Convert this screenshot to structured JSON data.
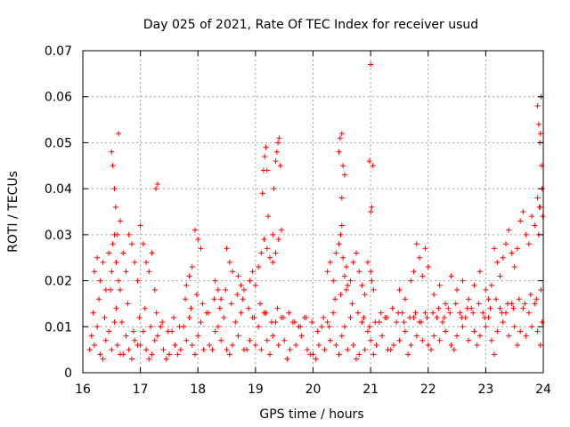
{
  "chart_data": {
    "type": "scatter",
    "title": "Day 025 of 2021, Rate Of TEC Index for receiver usud",
    "xlabel": "GPS time / hours",
    "ylabel": "ROTI / TECUs",
    "xlim": [
      16,
      24
    ],
    "ylim": [
      0,
      0.07
    ],
    "xticks": [
      16,
      17,
      18,
      19,
      20,
      21,
      22,
      23,
      24
    ],
    "xtick_labels": [
      "16",
      "17",
      "18",
      "19",
      "20",
      "21",
      "22",
      "23",
      "24"
    ],
    "yticks": [
      0,
      0.01,
      0.02,
      0.03,
      0.04,
      0.05,
      0.06,
      0.07
    ],
    "ytick_labels": [
      "0",
      "0.01",
      "0.02",
      "0.03",
      "0.04",
      "0.05",
      "0.06",
      "0.07"
    ],
    "grid": true,
    "marker": "plus",
    "color": "#ff0000",
    "series": [
      {
        "name": "ROTI",
        "x": [
          16.12,
          16.2,
          16.3,
          16.4,
          16.5,
          16.6,
          16.7,
          16.8,
          16.9,
          17.0,
          17.1,
          17.2,
          17.3,
          17.4,
          17.5,
          17.6,
          17.7,
          17.8,
          17.9,
          18.0,
          18.1,
          18.2,
          18.3,
          18.4,
          18.5,
          18.6,
          18.7,
          18.8,
          18.9,
          19.0,
          19.1,
          19.2,
          19.3,
          19.4,
          19.5,
          19.6,
          19.7,
          19.8,
          19.9,
          20.0,
          20.1,
          20.2,
          20.3,
          20.4,
          20.5,
          20.6,
          20.7,
          20.8,
          20.9,
          21.0,
          21.1,
          21.2,
          21.3,
          21.4,
          21.5,
          21.6,
          21.7,
          21.8,
          21.9,
          22.0,
          22.1,
          22.2,
          22.3,
          22.4,
          22.5,
          22.6,
          22.7,
          22.8,
          22.9,
          23.0,
          23.1,
          23.2,
          23.3,
          23.4,
          23.5,
          23.6,
          23.7,
          23.8,
          23.9,
          23.98,
          16.15,
          16.25,
          16.35,
          16.45,
          16.55,
          16.65,
          16.75,
          16.85,
          16.95,
          17.05,
          17.15,
          17.25,
          17.35,
          17.45,
          17.55,
          17.65,
          17.75,
          17.85,
          17.95,
          18.05,
          18.15,
          18.25,
          18.35,
          18.45,
          18.55,
          18.65,
          18.75,
          18.85,
          18.95,
          19.05,
          19.15,
          19.25,
          19.35,
          19.45,
          19.55,
          19.65,
          19.75,
          19.85,
          19.95,
          20.05,
          20.15,
          20.25,
          20.35,
          20.45,
          20.55,
          20.65,
          20.75,
          20.85,
          20.95,
          21.05,
          21.15,
          21.25,
          21.35,
          21.45,
          21.55,
          21.65,
          21.75,
          21.85,
          21.95,
          22.05,
          22.15,
          22.25,
          22.35,
          22.45,
          22.55,
          22.65,
          22.75,
          22.85,
          22.95,
          23.05,
          23.15,
          23.25,
          23.35,
          23.45,
          23.55,
          23.65,
          23.75,
          23.85,
          23.95,
          16.18,
          16.28,
          16.38,
          16.48,
          16.58,
          16.68,
          16.78,
          16.88,
          16.98,
          17.08,
          17.18,
          17.28,
          17.38,
          17.48,
          17.58,
          17.68,
          17.78,
          17.88,
          17.98,
          18.08,
          18.18,
          18.28,
          18.38,
          18.48,
          18.58,
          18.68,
          18.78,
          18.88,
          18.98,
          19.08,
          19.18,
          19.28,
          19.38,
          19.48,
          19.58,
          19.68,
          19.78,
          19.88,
          19.98,
          20.08,
          20.18,
          20.28,
          20.38,
          20.48,
          20.58,
          20.68,
          20.78,
          20.88,
          20.98,
          21.08,
          21.18,
          21.28,
          21.38,
          21.48,
          21.58,
          21.68,
          21.78,
          21.88,
          21.98,
          22.08,
          22.18,
          22.28,
          22.38,
          22.48,
          22.58,
          22.68,
          22.78,
          22.88,
          22.98,
          23.08,
          23.18,
          23.28,
          23.38,
          23.48,
          23.58,
          23.68,
          23.78,
          23.88,
          23.96,
          16.2,
          16.25,
          16.3,
          16.35,
          16.4,
          16.45,
          16.5,
          16.52,
          16.55,
          16.58,
          16.62,
          16.65,
          16.7,
          16.75,
          16.8,
          16.85,
          16.9,
          16.95,
          17.0,
          17.05,
          17.1,
          17.15,
          17.2,
          17.25,
          16.5,
          16.52,
          16.55,
          16.57,
          16.6,
          16.62,
          16.65,
          17.27,
          17.3,
          17.8,
          17.85,
          17.9,
          17.95,
          18.0,
          18.05,
          18.3,
          18.35,
          18.4,
          18.5,
          18.55,
          18.6,
          18.7,
          18.75,
          18.8,
          18.9,
          18.95,
          19.0,
          19.05,
          19.1,
          19.15,
          19.2,
          19.25,
          19.3,
          19.35,
          19.4,
          19.45,
          19.12,
          19.14,
          19.16,
          19.18,
          19.2,
          19.35,
          19.37,
          19.39,
          19.41,
          19.43,
          19.22,
          19.32,
          19.3,
          20.25,
          20.3,
          20.35,
          20.4,
          20.45,
          20.48,
          20.5,
          20.52,
          20.55,
          20.58,
          20.6,
          20.65,
          20.7,
          20.75,
          20.8,
          20.85,
          20.9,
          20.95,
          21.0,
          21.02,
          21.05,
          20.45,
          20.47,
          20.5,
          20.52,
          20.55,
          20.5,
          20.98,
          21.0,
          21.02,
          21.0,
          21.04,
          21.5,
          21.6,
          21.7,
          21.75,
          21.8,
          21.85,
          21.9,
          21.95,
          22.0,
          22.1,
          22.2,
          22.3,
          22.4,
          22.5,
          22.6,
          22.7,
          22.8,
          22.9,
          23.0,
          23.05,
          23.1,
          23.15,
          23.2,
          23.25,
          23.3,
          23.35,
          23.4,
          23.45,
          23.5,
          23.55,
          23.6,
          23.65,
          23.7,
          23.75,
          23.8,
          23.85,
          23.9,
          23.92,
          23.95,
          23.9,
          23.92,
          23.94,
          23.96,
          23.97,
          23.98,
          23.99,
          23.95,
          23.93
        ],
        "y": [
          0.005,
          0.006,
          0.004,
          0.007,
          0.005,
          0.006,
          0.004,
          0.005,
          0.007,
          0.006,
          0.005,
          0.004,
          0.008,
          0.005,
          0.004,
          0.006,
          0.005,
          0.007,
          0.006,
          0.008,
          0.005,
          0.006,
          0.009,
          0.007,
          0.005,
          0.006,
          0.008,
          0.005,
          0.007,
          0.006,
          0.005,
          0.007,
          0.008,
          0.006,
          0.007,
          0.005,
          0.006,
          0.008,
          0.005,
          0.004,
          0.006,
          0.005,
          0.007,
          0.006,
          0.008,
          0.005,
          0.006,
          0.004,
          0.005,
          0.007,
          0.006,
          0.008,
          0.005,
          0.006,
          0.007,
          0.009,
          0.006,
          0.008,
          0.007,
          0.006,
          0.008,
          0.007,
          0.009,
          0.006,
          0.008,
          0.01,
          0.007,
          0.009,
          0.008,
          0.01,
          0.007,
          0.009,
          0.011,
          0.008,
          0.01,
          0.009,
          0.008,
          0.01,
          0.009,
          0.011,
          0.008,
          0.01,
          0.003,
          0.009,
          0.011,
          0.004,
          0.008,
          0.003,
          0.006,
          0.009,
          0.003,
          0.007,
          0.01,
          0.003,
          0.009,
          0.004,
          0.01,
          0.012,
          0.004,
          0.011,
          0.013,
          0.005,
          0.01,
          0.012,
          0.004,
          0.011,
          0.013,
          0.005,
          0.012,
          0.01,
          0.013,
          0.004,
          0.011,
          0.012,
          0.003,
          0.011,
          0.01,
          0.012,
          0.004,
          0.003,
          0.01,
          0.011,
          0.013,
          0.004,
          0.01,
          0.012,
          0.003,
          0.011,
          0.009,
          0.004,
          0.011,
          0.012,
          0.005,
          0.011,
          0.013,
          0.004,
          0.012,
          0.011,
          0.013,
          0.005,
          0.012,
          0.011,
          0.014,
          0.005,
          0.013,
          0.012,
          0.014,
          0.006,
          0.013,
          0.012,
          0.004,
          0.014,
          0.013,
          0.015,
          0.006,
          0.014,
          0.013,
          0.015,
          0.006,
          0.013,
          0.016,
          0.012,
          0.018,
          0.014,
          0.011,
          0.015,
          0.009,
          0.012,
          0.014,
          0.01,
          0.013,
          0.011,
          0.009,
          0.012,
          0.01,
          0.016,
          0.014,
          0.017,
          0.015,
          0.013,
          0.016,
          0.014,
          0.018,
          0.015,
          0.017,
          0.016,
          0.014,
          0.012,
          0.015,
          0.013,
          0.011,
          0.014,
          0.012,
          0.013,
          0.011,
          0.01,
          0.012,
          0.011,
          0.009,
          0.012,
          0.01,
          0.016,
          0.017,
          0.018,
          0.015,
          0.013,
          0.012,
          0.01,
          0.011,
          0.013,
          0.012,
          0.014,
          0.013,
          0.011,
          0.012,
          0.013,
          0.011,
          0.012,
          0.013,
          0.014,
          0.012,
          0.013,
          0.015,
          0.012,
          0.014,
          0.013,
          0.015,
          0.012,
          0.014,
          0.016,
          0.013,
          0.015,
          0.014,
          0.016,
          0.015,
          0.017,
          0.016,
          0.018,
          0.022,
          0.025,
          0.02,
          0.024,
          0.018,
          0.026,
          0.022,
          0.028,
          0.03,
          0.024,
          0.02,
          0.018,
          0.026,
          0.022,
          0.03,
          0.028,
          0.024,
          0.02,
          0.032,
          0.028,
          0.024,
          0.022,
          0.026,
          0.018,
          0.048,
          0.045,
          0.04,
          0.036,
          0.03,
          0.052,
          0.033,
          0.04,
          0.041,
          0.019,
          0.021,
          0.023,
          0.031,
          0.029,
          0.027,
          0.02,
          0.018,
          0.016,
          0.027,
          0.024,
          0.022,
          0.021,
          0.019,
          0.018,
          0.02,
          0.022,
          0.019,
          0.023,
          0.026,
          0.029,
          0.027,
          0.025,
          0.024,
          0.026,
          0.029,
          0.031,
          0.039,
          0.044,
          0.047,
          0.049,
          0.044,
          0.046,
          0.048,
          0.05,
          0.051,
          0.045,
          0.034,
          0.04,
          0.03,
          0.022,
          0.024,
          0.02,
          0.026,
          0.028,
          0.03,
          0.032,
          0.025,
          0.021,
          0.023,
          0.019,
          0.02,
          0.024,
          0.026,
          0.022,
          0.019,
          0.017,
          0.024,
          0.022,
          0.02,
          0.018,
          0.048,
          0.051,
          0.052,
          0.045,
          0.043,
          0.038,
          0.046,
          0.035,
          0.036,
          0.067,
          0.045,
          0.018,
          0.016,
          0.02,
          0.022,
          0.028,
          0.025,
          0.021,
          0.027,
          0.023,
          0.017,
          0.019,
          0.015,
          0.021,
          0.018,
          0.02,
          0.016,
          0.019,
          0.022,
          0.018,
          0.016,
          0.019,
          0.027,
          0.024,
          0.021,
          0.025,
          0.028,
          0.031,
          0.026,
          0.023,
          0.027,
          0.033,
          0.035,
          0.03,
          0.028,
          0.034,
          0.032,
          0.038,
          0.03,
          0.036,
          0.058,
          0.054,
          0.05,
          0.06,
          0.045,
          0.04,
          0.034,
          0.052,
          0.036
        ]
      }
    ]
  }
}
